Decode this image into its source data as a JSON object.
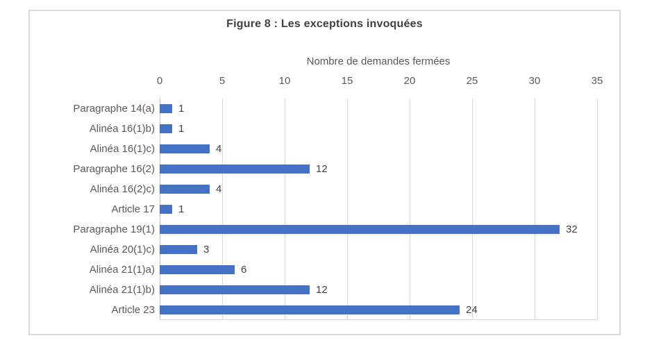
{
  "chart_data": {
    "type": "bar",
    "orientation": "horizontal",
    "title": "Figure 8 : Les exceptions invoquées",
    "xlabel": "Nombre de demandes fermées",
    "ylabel": "",
    "categories": [
      "Paragraphe 14(a)",
      "Alinéa 16(1)b)",
      "Alinéa 16(1)c)",
      "Paragraphe 16(2)",
      "Alinéa 16(2)c)",
      "Article 17",
      "Paragraphe 19(1)",
      "Alinéa 20(1)c)",
      "Alinéa 21(1)a)",
      "Alinéa 21(1)b)",
      "Article 23"
    ],
    "values": [
      1,
      1,
      4,
      12,
      4,
      1,
      32,
      3,
      6,
      12,
      24
    ],
    "xlim": [
      0,
      35
    ],
    "xticks": [
      0,
      5,
      10,
      15,
      20,
      25,
      30,
      35
    ],
    "grid": true,
    "data_labels": true,
    "legend": "none",
    "colors": {
      "bar": "#4472C4",
      "text": "#595959",
      "title": "#404040",
      "value_label": "#404040",
      "gridline": "#D9D9D9",
      "axis_line": "#BFBFBF",
      "border": "#D9D9D9"
    }
  }
}
